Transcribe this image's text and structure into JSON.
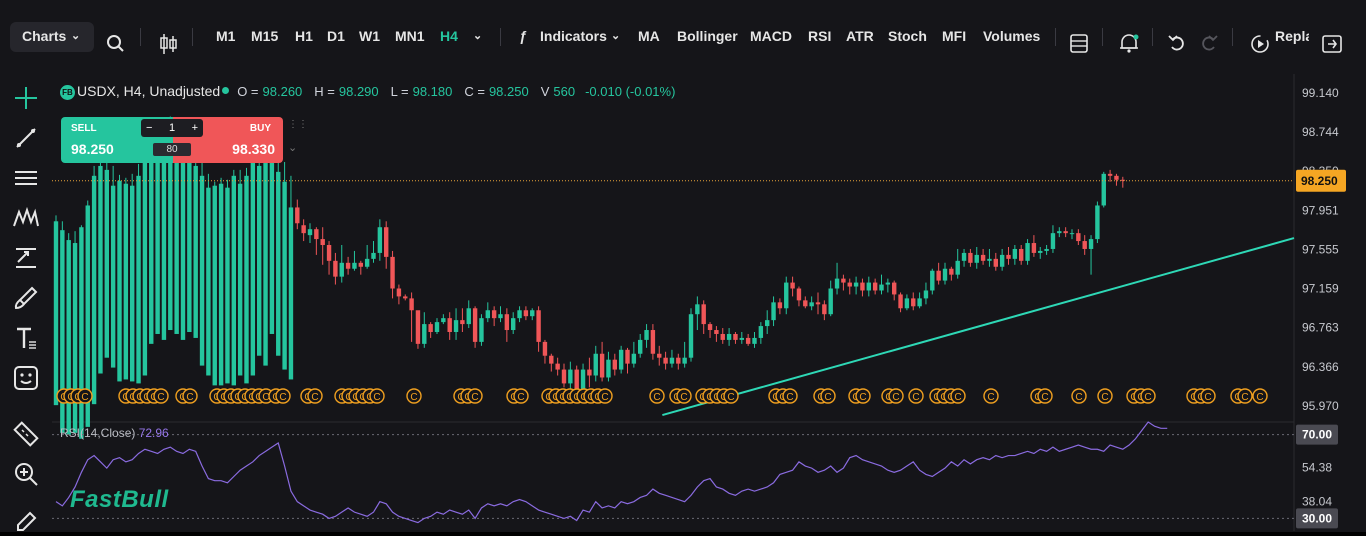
{
  "toolbar": {
    "charts_label": "Charts",
    "timeframes": [
      "M1",
      "M15",
      "H1",
      "D1",
      "W1",
      "MN1",
      "H4"
    ],
    "active_timeframe": "H4",
    "indicators_label": "Indicators",
    "indicators": [
      "MA",
      "Bollinger",
      "MACD",
      "RSI",
      "ATR",
      "Stoch",
      "MFI",
      "Volumes"
    ],
    "replay_label": "Repla"
  },
  "symbol_info": {
    "badge": "FB",
    "title": "USDX, H4, Unadjusted",
    "o_label": "O =",
    "o": "98.260",
    "h_label": "H =",
    "h": "98.290",
    "l_label": "L =",
    "l": "98.180",
    "c_label": "C =",
    "c": "98.250",
    "v_label": "V",
    "v": "560",
    "change": "-0.010 (-0.01%)"
  },
  "trade_panel": {
    "sell_label": "SELL",
    "sell_price": "98.250",
    "buy_label": "BUY",
    "buy_price": "98.330",
    "quantity": "1",
    "spread": "80",
    "minus": "−",
    "plus": "+"
  },
  "rsi": {
    "label": "RSI(14,Close)",
    "value": "72.96"
  },
  "logo_text": "FastBull",
  "colors": {
    "up": "#25c59e",
    "down": "#f05658",
    "trendline": "#2ed8b6",
    "rsi_line": "#8a6be0",
    "event": "#f0a020",
    "bg": "#151519"
  },
  "chart_data": {
    "type": "candlestick",
    "symbol": "USDX",
    "timeframe": "H4",
    "y_ticks": [
      "99.140",
      "98.744",
      "98.350",
      "97.951",
      "97.555",
      "97.159",
      "96.763",
      "96.366",
      "95.970"
    ],
    "ylim": [
      95.85,
      99.33
    ],
    "last_price_label": "98.250",
    "rsi_ticks": [
      "70.00",
      "54.38",
      "38.04",
      "30.00"
    ],
    "rsi_levels": [
      70,
      30
    ],
    "rsi_ylim": [
      24,
      76
    ],
    "event_marker_letter": "C",
    "event_groups": [
      [
        58,
        4
      ],
      [
        120,
        6
      ],
      [
        177,
        2
      ],
      [
        211,
        8
      ],
      [
        270,
        2
      ],
      [
        302,
        2
      ],
      [
        336,
        6
      ],
      [
        408,
        1
      ],
      [
        455,
        3
      ],
      [
        508,
        2
      ],
      [
        543,
        9
      ],
      [
        651,
        1
      ],
      [
        671,
        2
      ],
      [
        697,
        5
      ],
      [
        770,
        3
      ],
      [
        815,
        2
      ],
      [
        850,
        2
      ],
      [
        883,
        2
      ],
      [
        910,
        1
      ],
      [
        931,
        4
      ],
      [
        985,
        1
      ],
      [
        1032,
        2
      ],
      [
        1073,
        1
      ],
      [
        1099,
        1
      ],
      [
        1128,
        3
      ],
      [
        1188,
        3
      ],
      [
        1232,
        2
      ],
      [
        1254,
        1
      ]
    ],
    "trendline": {
      "from": [
        1,
        95.88
      ],
      "to": [
        148,
        97.67
      ]
    },
    "candles": [
      [
        95.98,
        97.84,
        97.9,
        97.7
      ],
      [
        95.7,
        97.75,
        97.84,
        97.62
      ],
      [
        95.68,
        97.65,
        97.72,
        97.56
      ],
      [
        95.7,
        97.62,
        97.74,
        97.58
      ],
      [
        95.64,
        97.78,
        97.8,
        97.55
      ],
      [
        95.76,
        98.0,
        98.05,
        97.74
      ],
      [
        95.99,
        98.3,
        98.4,
        97.98
      ],
      [
        96.3,
        98.4,
        98.48,
        98.26
      ],
      [
        96.46,
        98.36,
        98.52,
        98.24
      ],
      [
        96.36,
        98.2,
        98.4,
        98.08
      ],
      [
        96.22,
        98.25,
        98.31,
        98.1
      ],
      [
        96.24,
        98.22,
        98.28,
        98.1
      ],
      [
        96.22,
        98.2,
        98.32,
        98.06
      ],
      [
        96.2,
        98.3,
        98.42,
        98.08
      ],
      [
        96.28,
        98.66,
        98.7,
        97.98
      ],
      [
        96.6,
        98.7,
        98.82,
        98.58
      ],
      [
        96.7,
        98.62,
        98.74,
        98.54
      ],
      [
        96.64,
        98.76,
        98.8,
        98.52
      ],
      [
        96.74,
        98.7,
        98.9,
        98.62
      ],
      [
        96.7,
        98.66,
        98.72,
        98.56
      ],
      [
        96.64,
        98.72,
        98.8,
        98.6
      ],
      [
        96.72,
        98.66,
        98.76,
        98.54
      ],
      [
        96.66,
        98.4,
        98.82,
        98.32
      ],
      [
        96.38,
        98.3,
        98.46,
        98.12
      ],
      [
        96.28,
        98.18,
        98.32,
        98.12
      ],
      [
        96.18,
        98.2,
        98.24,
        98.08
      ],
      [
        96.18,
        98.22,
        98.28,
        98.14
      ],
      [
        96.2,
        98.18,
        98.26,
        98.1
      ],
      [
        96.18,
        98.3,
        98.36,
        98.12
      ],
      [
        96.28,
        98.22,
        98.36,
        98.12
      ],
      [
        96.2,
        98.3,
        98.38,
        98.1
      ],
      [
        96.28,
        98.48,
        98.52,
        98.14
      ],
      [
        96.48,
        98.4,
        98.6,
        98.3
      ],
      [
        96.38,
        98.7,
        98.76,
        98.36
      ],
      [
        96.7,
        98.5,
        98.8,
        98.4
      ],
      [
        96.48,
        98.34,
        98.58,
        98.2
      ],
      [
        96.34,
        98.24,
        98.44,
        98.1
      ],
      [
        96.24,
        97.98,
        98.3,
        97.9
      ],
      [
        97.98,
        97.82,
        98.06,
        97.76
      ],
      [
        97.8,
        97.72,
        97.86,
        97.64
      ],
      [
        97.7,
        97.76,
        97.82,
        97.62
      ],
      [
        97.76,
        97.66,
        97.78,
        97.5
      ],
      [
        97.66,
        97.6,
        97.78,
        97.4
      ],
      [
        97.6,
        97.44,
        97.64,
        97.3
      ],
      [
        97.44,
        97.28,
        97.52,
        97.2
      ],
      [
        97.28,
        97.42,
        97.6,
        97.22
      ],
      [
        97.42,
        97.36,
        97.48,
        97.3
      ],
      [
        97.36,
        97.42,
        97.54,
        97.34
      ],
      [
        97.42,
        97.38,
        97.44,
        97.3
      ],
      [
        97.38,
        97.46,
        97.6,
        97.36
      ],
      [
        97.46,
        97.52,
        97.64,
        97.42
      ],
      [
        97.52,
        97.78,
        97.86,
        97.44
      ],
      [
        97.78,
        97.48,
        97.84,
        97.36
      ],
      [
        97.48,
        97.16,
        97.54,
        97.06
      ],
      [
        97.16,
        97.08,
        97.2,
        97.0
      ],
      [
        97.08,
        97.06,
        97.1,
        97.04
      ],
      [
        97.06,
        96.94,
        97.12,
        96.62
      ],
      [
        96.94,
        96.6,
        96.92,
        96.55
      ],
      [
        96.6,
        96.8,
        96.92,
        96.56
      ],
      [
        96.8,
        96.72,
        96.82,
        96.66
      ],
      [
        96.72,
        96.82,
        96.86,
        96.7
      ],
      [
        96.82,
        96.86,
        96.9,
        96.8
      ],
      [
        96.86,
        96.72,
        96.92,
        96.64
      ],
      [
        96.72,
        96.84,
        96.96,
        96.64
      ],
      [
        96.84,
        96.8,
        96.96,
        96.72
      ],
      [
        96.8,
        96.96,
        97.04,
        96.76
      ],
      [
        96.96,
        96.62,
        96.98,
        96.56
      ],
      [
        96.62,
        96.86,
        96.9,
        96.58
      ],
      [
        96.86,
        96.94,
        97.02,
        96.82
      ],
      [
        96.94,
        96.86,
        96.98,
        96.78
      ],
      [
        96.86,
        96.9,
        96.98,
        96.82
      ],
      [
        96.9,
        96.74,
        96.96,
        96.62
      ],
      [
        96.74,
        96.86,
        96.92,
        96.7
      ],
      [
        96.86,
        96.94,
        96.98,
        96.82
      ],
      [
        96.94,
        96.88,
        96.98,
        96.84
      ],
      [
        96.88,
        96.94,
        96.96,
        96.84
      ],
      [
        96.94,
        96.62,
        96.98,
        96.52
      ],
      [
        96.62,
        96.48,
        96.64,
        96.4
      ],
      [
        96.48,
        96.4,
        96.5,
        96.32
      ],
      [
        96.4,
        96.34,
        96.46,
        96.28
      ],
      [
        96.34,
        96.2,
        96.4,
        96.16
      ],
      [
        96.2,
        96.34,
        96.42,
        96.12
      ],
      [
        96.34,
        96.1,
        96.38,
        96.04
      ],
      [
        96.1,
        96.34,
        96.4,
        96.0
      ],
      [
        96.34,
        96.28,
        96.46,
        96.16
      ],
      [
        96.28,
        96.5,
        96.58,
        96.22
      ],
      [
        96.5,
        96.26,
        96.62,
        96.22
      ],
      [
        96.26,
        96.44,
        96.52,
        96.22
      ],
      [
        96.44,
        96.34,
        96.5,
        96.28
      ],
      [
        96.34,
        96.54,
        96.58,
        96.3
      ],
      [
        96.54,
        96.4,
        96.56,
        96.3
      ],
      [
        96.4,
        96.5,
        96.62,
        96.36
      ],
      [
        96.5,
        96.64,
        96.7,
        96.46
      ],
      [
        96.64,
        96.74,
        96.8,
        96.56
      ],
      [
        96.74,
        96.5,
        96.8,
        96.44
      ],
      [
        96.5,
        96.46,
        96.58,
        96.38
      ],
      [
        96.46,
        96.4,
        96.52,
        96.34
      ],
      [
        96.4,
        96.46,
        96.54,
        96.36
      ],
      [
        96.46,
        96.4,
        96.5,
        96.34
      ],
      [
        96.4,
        96.46,
        96.62,
        96.36
      ],
      [
        96.46,
        96.9,
        96.96,
        96.42
      ],
      [
        96.9,
        97.0,
        97.08,
        96.74
      ],
      [
        97.0,
        96.8,
        97.04,
        96.7
      ],
      [
        96.8,
        96.74,
        96.82,
        96.66
      ],
      [
        96.74,
        96.7,
        96.78,
        96.62
      ],
      [
        96.7,
        96.64,
        96.76,
        96.6
      ],
      [
        96.64,
        96.7,
        96.76,
        96.58
      ],
      [
        96.7,
        96.64,
        96.72,
        96.6
      ],
      [
        96.64,
        96.66,
        96.72,
        96.6
      ],
      [
        96.66,
        96.6,
        96.7,
        96.58
      ],
      [
        96.6,
        96.66,
        96.72,
        96.56
      ],
      [
        96.66,
        96.78,
        96.82,
        96.6
      ],
      [
        96.78,
        96.84,
        96.94,
        96.7
      ],
      [
        96.84,
        97.02,
        97.08,
        96.78
      ],
      [
        97.02,
        96.96,
        97.06,
        96.9
      ],
      [
        96.96,
        97.22,
        97.28,
        96.9
      ],
      [
        97.22,
        97.16,
        97.28,
        97.08
      ],
      [
        97.16,
        97.04,
        97.18,
        96.98
      ],
      [
        97.04,
        96.98,
        97.08,
        96.96
      ],
      [
        96.98,
        97.02,
        97.08,
        96.94
      ],
      [
        97.02,
        97.0,
        97.12,
        96.9
      ],
      [
        97.0,
        96.9,
        97.04,
        96.84
      ],
      [
        96.9,
        97.16,
        97.24,
        96.88
      ],
      [
        97.16,
        97.26,
        97.42,
        97.1
      ],
      [
        97.26,
        97.22,
        97.3,
        97.14
      ],
      [
        97.22,
        97.18,
        97.26,
        97.1
      ],
      [
        97.18,
        97.22,
        97.28,
        97.1
      ],
      [
        97.22,
        97.14,
        97.26,
        97.08
      ],
      [
        97.14,
        97.22,
        97.28,
        97.08
      ],
      [
        97.22,
        97.14,
        97.26,
        97.1
      ],
      [
        97.14,
        97.2,
        97.3,
        97.1
      ],
      [
        97.2,
        97.22,
        97.26,
        97.12
      ],
      [
        97.22,
        97.1,
        97.24,
        97.04
      ],
      [
        97.1,
        96.96,
        97.12,
        96.92
      ],
      [
        96.96,
        97.06,
        97.1,
        96.94
      ],
      [
        97.06,
        96.98,
        97.12,
        96.94
      ],
      [
        96.98,
        97.06,
        97.12,
        96.96
      ],
      [
        97.06,
        97.14,
        97.22,
        97.0
      ],
      [
        97.14,
        97.34,
        97.36,
        97.1
      ],
      [
        97.34,
        97.24,
        97.42,
        97.2
      ],
      [
        97.24,
        97.36,
        97.42,
        97.2
      ],
      [
        97.36,
        97.3,
        97.38,
        97.24
      ],
      [
        97.3,
        97.44,
        97.56,
        97.26
      ],
      [
        97.44,
        97.52,
        97.56,
        97.38
      ],
      [
        97.52,
        97.42,
        97.56,
        97.38
      ],
      [
        97.42,
        97.5,
        97.58,
        97.36
      ],
      [
        97.5,
        97.44,
        97.56,
        97.4
      ],
      [
        97.44,
        97.46,
        97.56,
        97.38
      ],
      [
        97.46,
        97.38,
        97.52,
        97.34
      ],
      [
        97.38,
        97.5,
        97.56,
        97.34
      ],
      [
        97.5,
        97.46,
        97.58,
        97.4
      ],
      [
        97.46,
        97.56,
        97.6,
        97.4
      ],
      [
        97.56,
        97.44,
        97.6,
        97.4
      ],
      [
        97.44,
        97.62,
        97.66,
        97.4
      ],
      [
        97.62,
        97.52,
        97.7,
        97.48
      ],
      [
        97.52,
        97.54,
        97.58,
        97.46
      ],
      [
        97.54,
        97.56,
        97.6,
        97.5
      ],
      [
        97.56,
        97.72,
        97.8,
        97.52
      ],
      [
        97.72,
        97.74,
        97.78,
        97.68
      ],
      [
        97.74,
        97.72,
        97.78,
        97.68
      ],
      [
        97.72,
        97.72,
        97.76,
        97.66
      ],
      [
        97.72,
        97.64,
        97.76,
        97.6
      ],
      [
        97.64,
        97.56,
        97.7,
        97.5
      ],
      [
        97.56,
        97.66,
        97.7,
        97.3
      ],
      [
        97.66,
        98.0,
        98.04,
        97.62
      ],
      [
        98.0,
        98.32,
        98.34,
        97.98
      ],
      [
        98.32,
        98.3,
        98.36,
        98.24
      ],
      [
        98.3,
        98.26,
        98.32,
        98.2
      ],
      [
        98.26,
        98.25,
        98.29,
        98.18
      ]
    ],
    "rsi_values": [
      38,
      36,
      40,
      45,
      52,
      58,
      60,
      57,
      54,
      58,
      59,
      57,
      58,
      61,
      63,
      62,
      61,
      63,
      64,
      62,
      61,
      63,
      62,
      55,
      49,
      48,
      48,
      47,
      50,
      53,
      55,
      57,
      60,
      62,
      64,
      66,
      55,
      43,
      38,
      36,
      34,
      33,
      32,
      30,
      31,
      33,
      35,
      33,
      32,
      31,
      33,
      38,
      37,
      33,
      31,
      30,
      29,
      28,
      30,
      31,
      33,
      32,
      34,
      33,
      32,
      34,
      30,
      35,
      37,
      36,
      37,
      36,
      38,
      39,
      38,
      36,
      34,
      33,
      32,
      31,
      30,
      31,
      29,
      34,
      33,
      38,
      35,
      36,
      35,
      38,
      37,
      38,
      40,
      41,
      44,
      42,
      41,
      40,
      39,
      38,
      41,
      45,
      48,
      49,
      45,
      44,
      42,
      41,
      43,
      44,
      43,
      44,
      45,
      47,
      51,
      52,
      53,
      57,
      55,
      54,
      52,
      53,
      55,
      52,
      54,
      59,
      60,
      58,
      57,
      56,
      55,
      53,
      52,
      53,
      55,
      57,
      53,
      51,
      50,
      52,
      54,
      57,
      55,
      58,
      56,
      58,
      59,
      58,
      60,
      59,
      60,
      60,
      61,
      62,
      61,
      63,
      62,
      64,
      62,
      63,
      64,
      65,
      64,
      63,
      63,
      62,
      65,
      64,
      63,
      65,
      68,
      72,
      76,
      74,
      73,
      73
    ]
  }
}
